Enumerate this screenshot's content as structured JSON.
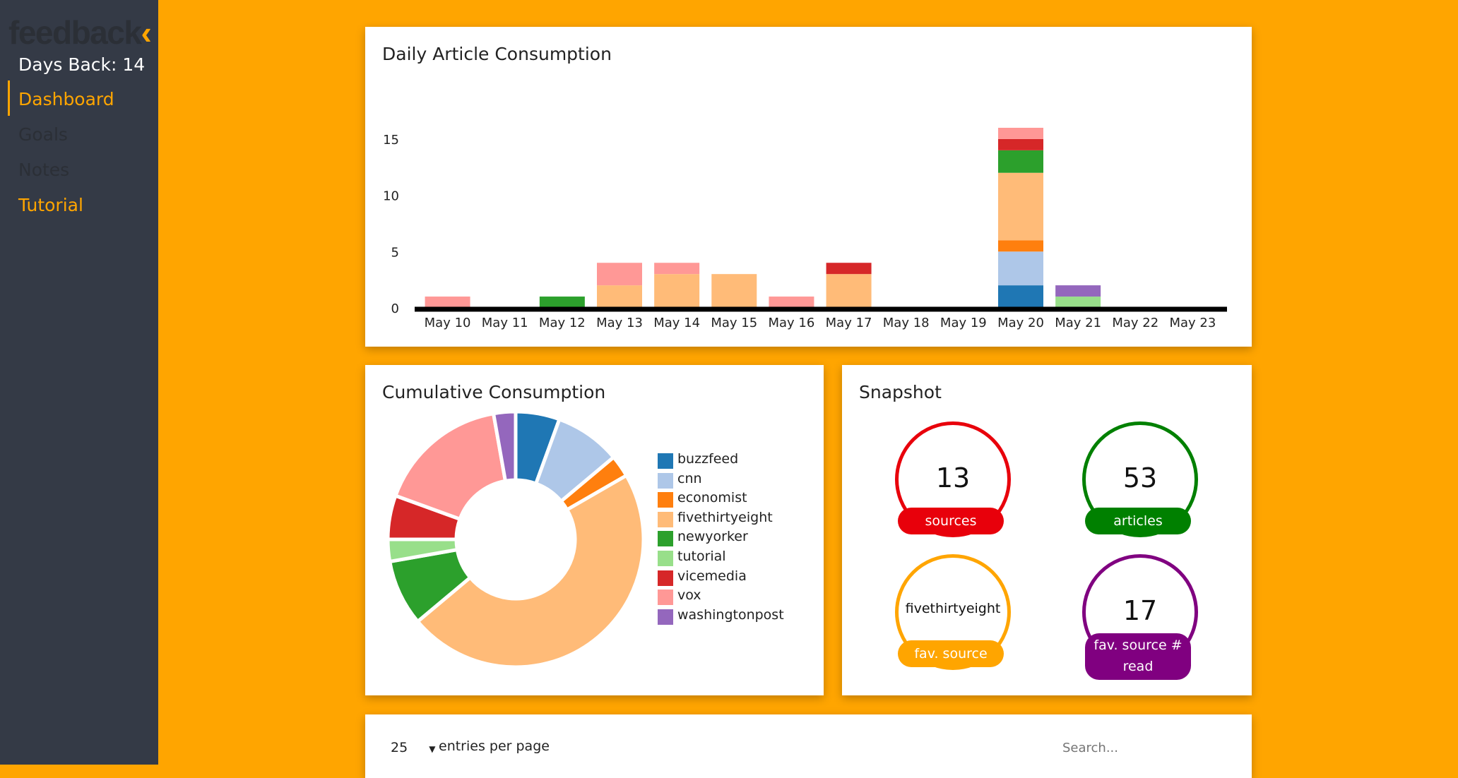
{
  "sidebar": {
    "logo_text": "feedback",
    "logo_chevron": "‹",
    "days_back": "Days Back: 14",
    "nav": [
      {
        "label": "Dashboard",
        "state": "active"
      },
      {
        "label": "Goals",
        "state": "disabled"
      },
      {
        "label": "Notes",
        "state": "disabled"
      },
      {
        "label": "Tutorial",
        "state": "link"
      }
    ]
  },
  "colors": {
    "background": "#FFA500",
    "sidebar": "#343a46",
    "nav_active": "#FFA500",
    "nav_disabled": "#2b2f36",
    "buzzfeed": "#1f77b4",
    "cnn": "#aec7e8",
    "economist": "#ff7f0e",
    "fivethirtyeight": "#ffbb78",
    "newyorker": "#2ca02c",
    "tutorial": "#98df8a",
    "vicemedia": "#d62728",
    "vox": "#ff9896",
    "washingtonpost": "#9467bd"
  },
  "chart_data": [
    {
      "type": "bar",
      "stacked": true,
      "title": "Daily Article Consumption",
      "categories": [
        "May 10",
        "May 11",
        "May 12",
        "May 13",
        "May 14",
        "May 15",
        "May 16",
        "May 17",
        "May 18",
        "May 19",
        "May 20",
        "May 21",
        "May 22",
        "May 23"
      ],
      "series": [
        {
          "name": "buzzfeed",
          "values": [
            0,
            0,
            0,
            0,
            0,
            0,
            0,
            0,
            0,
            0,
            2,
            0,
            0,
            0
          ]
        },
        {
          "name": "cnn",
          "values": [
            0,
            0,
            0,
            0,
            0,
            0,
            0,
            0,
            0,
            0,
            3,
            0,
            0,
            0
          ]
        },
        {
          "name": "economist",
          "values": [
            0,
            0,
            0,
            0,
            0,
            0,
            0,
            0,
            0,
            0,
            1,
            0,
            0,
            0
          ]
        },
        {
          "name": "fivethirtyeight",
          "values": [
            0,
            0,
            0,
            2,
            3,
            3,
            0,
            3,
            0,
            0,
            6,
            0,
            0,
            0
          ]
        },
        {
          "name": "newyorker",
          "values": [
            0,
            0,
            1,
            0,
            0,
            0,
            0,
            0,
            0,
            0,
            2,
            0,
            0,
            0
          ]
        },
        {
          "name": "tutorial",
          "values": [
            0,
            0,
            0,
            0,
            0,
            0,
            0,
            0,
            0,
            0,
            0,
            1,
            0,
            0
          ]
        },
        {
          "name": "vicemedia",
          "values": [
            0,
            0,
            0,
            0,
            0,
            0,
            0,
            1,
            0,
            0,
            1,
            0,
            0,
            0
          ]
        },
        {
          "name": "vox",
          "values": [
            1,
            0,
            0,
            2,
            1,
            0,
            1,
            0,
            0,
            0,
            1,
            0,
            0,
            0
          ]
        },
        {
          "name": "washingtonpost",
          "values": [
            0,
            0,
            0,
            0,
            0,
            0,
            0,
            0,
            0,
            0,
            0,
            1,
            0,
            0
          ]
        }
      ],
      "yticks": [
        0,
        5,
        10,
        15
      ],
      "ylim": [
        0,
        16
      ],
      "xlabel": "",
      "ylabel": ""
    },
    {
      "type": "pie",
      "donut": true,
      "title": "Cumulative Consumption",
      "labels": [
        "buzzfeed",
        "cnn",
        "economist",
        "fivethirtyeight",
        "newyorker",
        "tutorial",
        "vicemedia",
        "vox",
        "washingtonpost"
      ],
      "values": [
        2,
        3,
        1,
        17,
        3,
        1,
        2,
        6,
        1
      ],
      "legend_position": "right"
    }
  ],
  "snapshot": {
    "title": "Snapshot",
    "cards": [
      {
        "value": "13",
        "label": "sources",
        "color": "#e8000b"
      },
      {
        "value": "53",
        "label": "articles",
        "color": "#008000"
      },
      {
        "value": "fivethirtyeight",
        "label": "fav. source",
        "color": "#FFA500"
      },
      {
        "value": "17",
        "label": "fav. source # read",
        "color": "#800080"
      }
    ]
  },
  "table": {
    "entries_value": "25",
    "entries_label": "entries per page",
    "search_placeholder": "Search..."
  }
}
